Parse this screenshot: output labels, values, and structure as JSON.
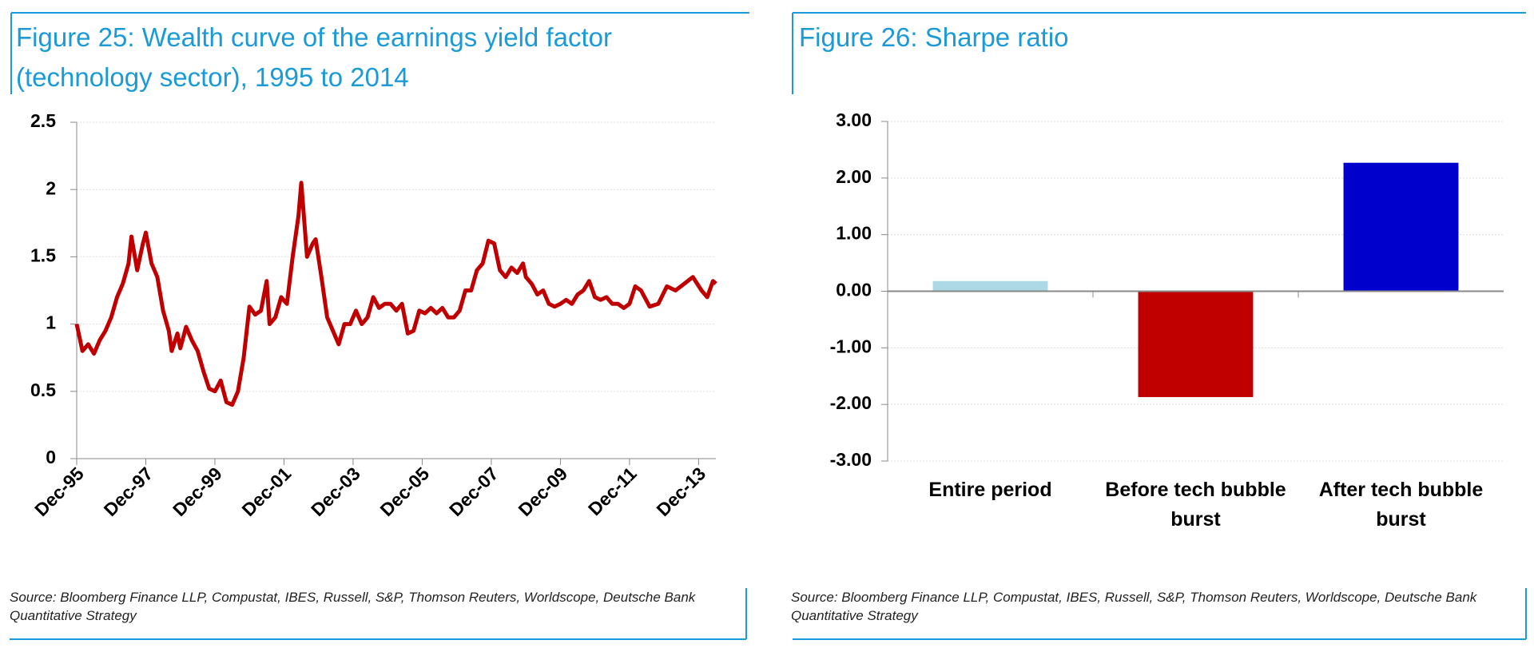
{
  "chart_data": [
    {
      "type": "line",
      "title": "Figure 25: Wealth curve of the earnings yield factor (technology sector), 1995 to 2014",
      "source": "Source: Bloomberg Finance LLP, Compustat, IBES, Russell, S&P, Thomson Reuters, Worldscope, Deutsche Bank Quantitative Strategy",
      "color": "#c00000",
      "x": [
        "1995-12",
        "1996-02",
        "1996-04",
        "1996-06",
        "1996-08",
        "1996-10",
        "1996-12",
        "1997-02",
        "1997-04",
        "1997-06",
        "1997-07",
        "1997-09",
        "1997-11",
        "1997-12",
        "1998-02",
        "1998-04",
        "1998-06",
        "1998-08",
        "1998-09",
        "1998-11",
        "1998-12",
        "1999-02",
        "1999-04",
        "1999-06",
        "1999-08",
        "1999-10",
        "1999-12",
        "2000-02",
        "2000-04",
        "2000-06",
        "2000-08",
        "2000-10",
        "2000-12",
        "2001-02",
        "2001-04",
        "2001-06",
        "2001-07",
        "2001-09",
        "2001-11",
        "2002-01",
        "2002-03",
        "2002-05",
        "2002-06",
        "2002-08",
        "2002-10",
        "2002-11",
        "2003-01",
        "2003-03",
        "2003-05",
        "2003-07",
        "2003-09",
        "2003-11",
        "2004-01",
        "2004-03",
        "2004-05",
        "2004-07",
        "2004-09",
        "2004-11",
        "2005-01",
        "2005-03",
        "2005-05",
        "2005-07",
        "2005-09",
        "2005-11",
        "2006-01",
        "2006-03",
        "2006-05",
        "2006-07",
        "2006-09",
        "2006-11",
        "2007-01",
        "2007-03",
        "2007-05",
        "2007-07",
        "2007-09",
        "2007-11",
        "2008-01",
        "2008-03",
        "2008-05",
        "2008-07",
        "2008-09",
        "2008-11",
        "2008-12",
        "2009-02",
        "2009-04",
        "2009-06",
        "2009-08",
        "2009-10",
        "2009-12",
        "2010-02",
        "2010-04",
        "2010-06",
        "2010-08",
        "2010-10",
        "2010-12",
        "2011-02",
        "2011-04",
        "2011-06",
        "2011-08",
        "2011-10",
        "2011-12",
        "2012-02",
        "2012-04",
        "2012-07",
        "2012-10",
        "2013-01",
        "2013-04",
        "2013-07",
        "2013-10",
        "2014-01",
        "2014-03",
        "2014-05",
        "2014-06"
      ],
      "values": [
        1.0,
        0.8,
        0.85,
        0.78,
        0.88,
        0.95,
        1.05,
        1.2,
        1.3,
        1.45,
        1.65,
        1.4,
        1.6,
        1.68,
        1.45,
        1.35,
        1.1,
        0.95,
        0.8,
        0.93,
        0.82,
        0.98,
        0.88,
        0.8,
        0.65,
        0.52,
        0.5,
        0.58,
        0.42,
        0.4,
        0.5,
        0.75,
        1.13,
        1.07,
        1.1,
        1.32,
        1.0,
        1.05,
        1.2,
        1.15,
        1.5,
        1.8,
        2.05,
        1.5,
        1.6,
        1.63,
        1.35,
        1.05,
        0.95,
        0.85,
        1.0,
        1.0,
        1.1,
        1.0,
        1.05,
        1.2,
        1.12,
        1.15,
        1.15,
        1.1,
        1.15,
        0.93,
        0.95,
        1.1,
        1.08,
        1.12,
        1.08,
        1.12,
        1.05,
        1.05,
        1.1,
        1.25,
        1.25,
        1.4,
        1.45,
        1.62,
        1.6,
        1.4,
        1.35,
        1.42,
        1.38,
        1.45,
        1.35,
        1.3,
        1.22,
        1.25,
        1.15,
        1.13,
        1.15,
        1.18,
        1.15,
        1.22,
        1.25,
        1.32,
        1.2,
        1.18,
        1.2,
        1.15,
        1.15,
        1.12,
        1.15,
        1.28,
        1.25,
        1.13,
        1.15,
        1.28,
        1.25,
        1.3,
        1.35,
        1.25,
        1.2,
        1.32,
        1.3
      ],
      "xlim": [
        "1995-12",
        "2014-06"
      ],
      "xticks": [
        {
          "value": "1995-12",
          "label": "Dec-95"
        },
        {
          "value": "1997-12",
          "label": "Dec-97"
        },
        {
          "value": "1999-12",
          "label": "Dec-99"
        },
        {
          "value": "2001-12",
          "label": "Dec-01"
        },
        {
          "value": "2003-12",
          "label": "Dec-03"
        },
        {
          "value": "2005-12",
          "label": "Dec-05"
        },
        {
          "value": "2007-12",
          "label": "Dec-07"
        },
        {
          "value": "2009-12",
          "label": "Dec-09"
        },
        {
          "value": "2011-12",
          "label": "Dec-11"
        },
        {
          "value": "2013-12",
          "label": "Dec-13"
        }
      ],
      "ylim": [
        0,
        2.5
      ],
      "yticks": [
        0,
        0.5,
        1,
        1.5,
        2,
        2.5
      ],
      "grid": true
    },
    {
      "type": "bar",
      "title": "Figure 26: Sharpe ratio",
      "source": "Source: Bloomberg Finance LLP, Compustat, IBES, Russell, S&P, Thomson Reuters, Worldscope, Deutsche Bank Quantitative Strategy",
      "categories": [
        "Entire period",
        "Before tech bubble burst",
        "After tech bubble burst"
      ],
      "values": [
        0.18,
        -1.87,
        2.27
      ],
      "colors": [
        "#add8e6",
        "#c00000",
        "#0000cc"
      ],
      "ylim": [
        -3,
        3
      ],
      "yticks": [
        {
          "value": -3,
          "label": "-3.00"
        },
        {
          "value": -2,
          "label": "-2.00"
        },
        {
          "value": -1,
          "label": "-1.00"
        },
        {
          "value": 0,
          "label": "0.00"
        },
        {
          "value": 1,
          "label": "1.00"
        },
        {
          "value": 2,
          "label": "2.00"
        },
        {
          "value": 3,
          "label": "3.00"
        }
      ],
      "grid": true
    }
  ]
}
